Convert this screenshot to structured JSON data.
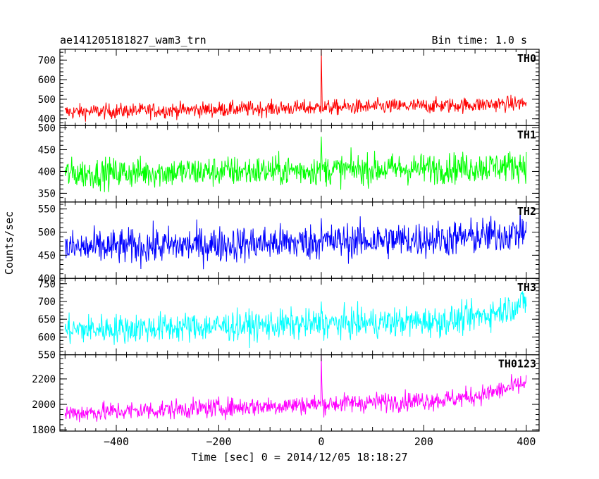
{
  "chart_data": {
    "type": "line",
    "title_left": "ae141205181827_wam3_trn",
    "title_right": "Bin time: 1.0 s",
    "xlabel": "Time [sec] 0 = 2014/12/05 18:18:27",
    "ylabel": "Counts/sec",
    "xlim": [
      -510,
      425
    ],
    "x_ticks": [
      -400,
      -200,
      0,
      200,
      400
    ],
    "x_tick_labels": [
      "−400",
      "−200",
      "0",
      "200",
      "400"
    ],
    "x_range_data": [
      -500,
      400
    ],
    "burst_time": 0,
    "panels": [
      {
        "name": "TH0",
        "color": "#ff0000",
        "ylim": [
          365,
          755
        ],
        "yticks": [
          400,
          500,
          600,
          700
        ],
        "baseline_start": 435,
        "baseline_end": 475,
        "end_rise": 5,
        "noise_amp": 28,
        "spike_max": 760,
        "stats_start": {
          "min": 375,
          "max": 500
        },
        "stats_end": {
          "min": 420,
          "max": 545
        }
      },
      {
        "name": "TH1",
        "color": "#00ff00",
        "ylim": [
          330,
          505
        ],
        "yticks": [
          350,
          400,
          450,
          500
        ],
        "baseline_start": 395,
        "baseline_end": 410,
        "end_rise": 5,
        "noise_amp": 25,
        "spike_max": 480,
        "stats_start": {
          "min": 345,
          "max": 460
        },
        "stats_end": {
          "min": 370,
          "max": 500
        }
      },
      {
        "name": "TH2",
        "color": "#0000ff",
        "ylim": [
          400,
          565
        ],
        "yticks": [
          400,
          450,
          500,
          550
        ],
        "baseline_start": 465,
        "baseline_end": 490,
        "end_rise": 12,
        "noise_amp": 28,
        "spike_max": 530,
        "stats_start": {
          "min": 400,
          "max": 530
        },
        "stats_end": {
          "min": 440,
          "max": 560
        }
      },
      {
        "name": "TH3",
        "color": "#00ffff",
        "ylim": [
          550,
          765
        ],
        "yticks": [
          550,
          600,
          650,
          700,
          750
        ],
        "baseline_start": 620,
        "baseline_end": 650,
        "end_rise": 50,
        "noise_amp": 30,
        "spike_max": 700,
        "stats_start": {
          "min": 555,
          "max": 700
        },
        "stats_end": {
          "min": 630,
          "max": 765
        }
      },
      {
        "name": "TH0123",
        "color": "#ff00ff",
        "ylim": [
          1790,
          2390
        ],
        "yticks": [
          1800,
          2000,
          2200
        ],
        "baseline_start": 1930,
        "baseline_end": 2060,
        "end_rise": 110,
        "noise_amp": 55,
        "spike_max": 2390,
        "stats_start": {
          "min": 1820,
          "max": 2080
        },
        "stats_end": {
          "min": 2050,
          "max": 2320
        }
      }
    ]
  }
}
